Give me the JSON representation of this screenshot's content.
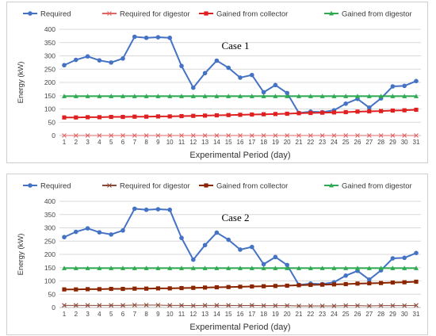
{
  "chart_data": [
    {
      "type": "line",
      "title": "Case 1",
      "xlabel": "Experimental Period (day)",
      "ylabel": "Energy (kW)",
      "ylim": [
        0,
        400
      ],
      "yticks": [
        0,
        50,
        100,
        150,
        200,
        250,
        300,
        350,
        400
      ],
      "x": [
        1,
        2,
        3,
        4,
        5,
        6,
        7,
        8,
        9,
        10,
        11,
        12,
        13,
        14,
        15,
        16,
        17,
        18,
        19,
        20,
        21,
        22,
        23,
        24,
        25,
        26,
        27,
        28,
        29,
        30,
        31
      ],
      "grid": "horizontal",
      "legend": "top",
      "series": [
        {
          "name": "Required",
          "color": "#4472c4",
          "marker": "circle",
          "values": [
            265,
            285,
            298,
            283,
            275,
            290,
            372,
            368,
            370,
            368,
            262,
            180,
            235,
            282,
            255,
            218,
            228,
            163,
            190,
            160,
            85,
            90,
            88,
            95,
            120,
            138,
            105,
            140,
            185,
            187,
            205
          ]
        },
        {
          "name": "Required for digestor",
          "color": "#e06666",
          "marker": "x",
          "values": [
            0,
            0,
            0,
            0,
            0,
            0,
            0,
            0,
            0,
            0,
            0,
            0,
            0,
            0,
            0,
            0,
            0,
            0,
            0,
            0,
            0,
            0,
            0,
            0,
            0,
            0,
            0,
            0,
            0,
            0,
            0
          ]
        },
        {
          "name": "Gained from collector",
          "color": "#e02020",
          "marker": "square",
          "values": [
            68,
            68,
            69,
            69,
            70,
            70,
            71,
            71,
            72,
            72,
            73,
            74,
            75,
            76,
            77,
            78,
            79,
            80,
            81,
            82,
            84,
            85,
            86,
            87,
            88,
            90,
            91,
            92,
            94,
            95,
            97
          ]
        },
        {
          "name": "Gained from digestor",
          "color": "#2eaa52",
          "marker": "triangle",
          "values": [
            148,
            148,
            148,
            148,
            148,
            148,
            148,
            148,
            148,
            148,
            148,
            148,
            148,
            148,
            148,
            148,
            148,
            148,
            148,
            148,
            148,
            148,
            148,
            148,
            148,
            148,
            148,
            148,
            148,
            148,
            148
          ]
        }
      ]
    },
    {
      "type": "line",
      "title": "Case 2",
      "xlabel": "Experimental Period (day)",
      "ylabel": "Energy (kW)",
      "ylim": [
        0,
        400
      ],
      "yticks": [
        0,
        50,
        100,
        150,
        200,
        250,
        300,
        350,
        400
      ],
      "x": [
        1,
        2,
        3,
        4,
        5,
        6,
        7,
        8,
        9,
        10,
        11,
        12,
        13,
        14,
        15,
        16,
        17,
        18,
        19,
        20,
        21,
        22,
        23,
        24,
        25,
        26,
        27,
        28,
        29,
        30,
        31
      ],
      "grid": "horizontal",
      "legend": "top",
      "series": [
        {
          "name": "Required",
          "color": "#4472c4",
          "marker": "circle",
          "values": [
            265,
            285,
            298,
            283,
            275,
            290,
            372,
            368,
            370,
            368,
            262,
            180,
            235,
            282,
            255,
            218,
            228,
            163,
            190,
            160,
            85,
            90,
            88,
            95,
            120,
            138,
            105,
            140,
            185,
            187,
            205
          ]
        },
        {
          "name": "Required for digestor",
          "color": "#8b4a3a",
          "marker": "x",
          "values": [
            8,
            8,
            8,
            8,
            8,
            8,
            9,
            9,
            9,
            8,
            8,
            7,
            8,
            8,
            8,
            7,
            8,
            7,
            7,
            7,
            6,
            6,
            6,
            6,
            7,
            7,
            6,
            7,
            7,
            7,
            8
          ]
        },
        {
          "name": "Gained from collector",
          "color": "#8b2500",
          "marker": "square",
          "values": [
            68,
            68,
            69,
            69,
            70,
            70,
            71,
            71,
            72,
            72,
            73,
            74,
            75,
            76,
            77,
            78,
            79,
            80,
            81,
            82,
            84,
            85,
            86,
            87,
            88,
            90,
            91,
            92,
            94,
            95,
            97
          ]
        },
        {
          "name": "Gained from digestor",
          "color": "#2eaa52",
          "marker": "triangle",
          "values": [
            148,
            148,
            148,
            148,
            148,
            148,
            148,
            148,
            148,
            148,
            148,
            148,
            148,
            148,
            148,
            148,
            148,
            148,
            148,
            148,
            148,
            148,
            148,
            148,
            148,
            148,
            148,
            148,
            148,
            148,
            148
          ]
        }
      ]
    }
  ]
}
